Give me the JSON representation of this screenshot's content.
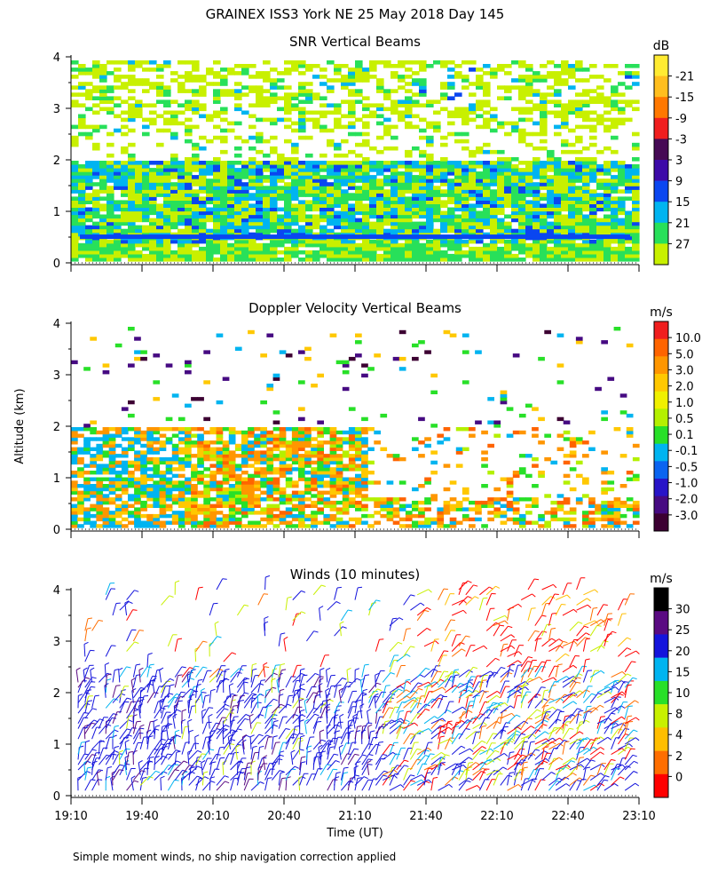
{
  "figure": {
    "title": "GRAINEX ISS3 York NE  25 May 2018 Day 145",
    "ylabel": "Altitude (km)",
    "xlabel": "Time (UT)",
    "footnote": "Simple moment winds, no ship navigation correction applied"
  },
  "chart_data": [
    {
      "type": "heatmap",
      "title": "SNR Vertical Beams",
      "xticks": [
        "19:10",
        "19:40",
        "20:10",
        "20:40",
        "21:10",
        "21:40",
        "22:10",
        "22:40",
        "23:10"
      ],
      "yticks": [
        "0",
        "1",
        "2",
        "3",
        "4"
      ],
      "ylim": [
        0,
        4
      ],
      "colorbar": {
        "unit": "dB",
        "levels": [
          "-21",
          "-15",
          "-9",
          "-3",
          "3",
          "9",
          "15",
          "21",
          "27"
        ],
        "colors": [
          "#c8f000",
          "#28e05a",
          "#00b4f0",
          "#0a46f0",
          "#3c0aa8",
          "#460a55",
          "#f01e1e",
          "#ff7800",
          "#ffbe1e",
          "#ffeb32"
        ]
      },
      "series": [
        {
          "note_ranges_km": "strong echo 0–2 km, patchy to 4 km"
        }
      ]
    },
    {
      "type": "heatmap",
      "title": "Doppler Velocity Vertical Beams",
      "xticks": [
        "19:10",
        "19:40",
        "20:10",
        "20:40",
        "21:10",
        "21:40",
        "22:10",
        "22:40",
        "23:10"
      ],
      "yticks": [
        "0",
        "1",
        "2",
        "3",
        "4"
      ],
      "ylim": [
        0,
        4
      ],
      "colorbar": {
        "unit": "m/s",
        "levels": [
          "10.0",
          "5.0",
          "3.0",
          "2.0",
          "1.0",
          "0.5",
          "0.1",
          "-0.1",
          "-0.5",
          "-1.0",
          "-2.0",
          "-3.0"
        ],
        "colors": [
          "#3c0032",
          "#460a82",
          "#2814c8",
          "#0a64f0",
          "#00b4f0",
          "#28e028",
          "#b4f000",
          "#f0f000",
          "#ffc800",
          "#ff9600",
          "#ff6400",
          "#f01e1e"
        ]
      }
    },
    {
      "type": "scatter",
      "title": "Winds (10 minutes)",
      "xticks": [
        "19:10",
        "19:40",
        "20:10",
        "20:40",
        "21:10",
        "21:40",
        "22:10",
        "22:40",
        "23:10"
      ],
      "yticks": [
        "0",
        "1",
        "2",
        "3",
        "4"
      ],
      "ylim": [
        0,
        4
      ],
      "colorbar": {
        "unit": "m/s",
        "levels": [
          "30",
          "25",
          "20",
          "15",
          "10",
          "8",
          "4",
          "2",
          "0"
        ],
        "colors": [
          "#ff0000",
          "#ff6e00",
          "#ffbe00",
          "#c8f000",
          "#28e028",
          "#00b4f0",
          "#1414dc",
          "#5a0a82",
          "#000000"
        ]
      }
    }
  ]
}
